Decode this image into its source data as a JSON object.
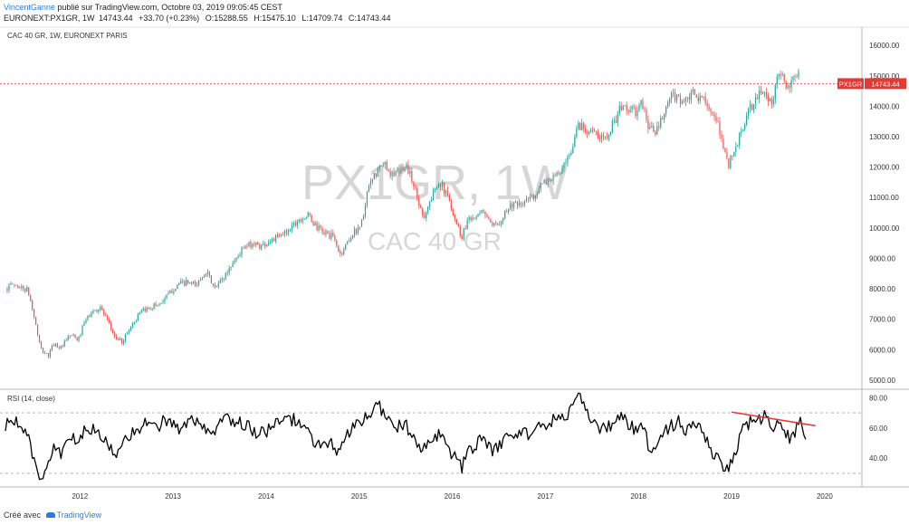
{
  "header": {
    "author": "VincentGanne",
    "published_text": " publié sur TradingView.com, Octobre 03, 2019 09:05:45 CEST",
    "symbol_line": "EURONEXT:PX1GR, 1W",
    "last": "14743.44",
    "change": "+33.70 (+0.23%)",
    "open_label": "O:",
    "open": "15288.55",
    "high_label": "H:",
    "high": "15475.10",
    "low_label": "L:",
    "low": "14709.74",
    "close_label": "C:",
    "close": "14743.44"
  },
  "chart_data": [
    {
      "type": "candlestick",
      "title": "CAC 40 GR, 1W, EURONEXT PARIS",
      "watermark": "PX1GR, 1W",
      "watermark_sub": "CAC 40 GR",
      "ylim": [
        4700,
        16600
      ],
      "yticks": [
        5000,
        6000,
        7000,
        8000,
        9000,
        10000,
        11000,
        12000,
        13000,
        14000,
        15000,
        16000
      ],
      "ytick_labels": [
        "5000.00",
        "6000.00",
        "7000.00",
        "8000.00",
        "9000.00",
        "10000.00",
        "11000.00",
        "12000.00",
        "13000.00",
        "14000.00",
        "15000.00",
        "16000.00"
      ],
      "xlim": [
        2011.2,
        2020.4
      ],
      "xticks": [
        2012,
        2013,
        2014,
        2015,
        2016,
        2017,
        2018,
        2019,
        2020
      ],
      "xtick_labels": [
        "2012",
        "2013",
        "2014",
        "2015",
        "2016",
        "2017",
        "2018",
        "2019",
        "2020"
      ],
      "last_price_label": "PX1GR",
      "last_price_value": "14743.44",
      "last_price": 14743.44,
      "colors": {
        "up": "#26a69a",
        "down": "#ef5350",
        "price_line": "#e53935"
      },
      "path": [
        [
          2011.2,
          8000
        ],
        [
          2011.28,
          8150
        ],
        [
          2011.36,
          8050
        ],
        [
          2011.44,
          7950
        ],
        [
          2011.5,
          7200
        ],
        [
          2011.58,
          6000
        ],
        [
          2011.66,
          5800
        ],
        [
          2011.72,
          6200
        ],
        [
          2011.8,
          6050
        ],
        [
          2011.9,
          6500
        ],
        [
          2011.98,
          6300
        ],
        [
          2012.05,
          6900
        ],
        [
          2012.12,
          7200
        ],
        [
          2012.22,
          7400
        ],
        [
          2012.3,
          6900
        ],
        [
          2012.38,
          6400
        ],
        [
          2012.45,
          6250
        ],
        [
          2012.55,
          6800
        ],
        [
          2012.65,
          7200
        ],
        [
          2012.75,
          7400
        ],
        [
          2012.85,
          7500
        ],
        [
          2012.95,
          7800
        ],
        [
          2013.05,
          8150
        ],
        [
          2013.15,
          8200
        ],
        [
          2013.25,
          8100
        ],
        [
          2013.35,
          8600
        ],
        [
          2013.45,
          8000
        ],
        [
          2013.55,
          8400
        ],
        [
          2013.65,
          8900
        ],
        [
          2013.75,
          9300
        ],
        [
          2013.85,
          9500
        ],
        [
          2013.95,
          9400
        ],
        [
          2014.05,
          9600
        ],
        [
          2014.15,
          9700
        ],
        [
          2014.25,
          10000
        ],
        [
          2014.35,
          10300
        ],
        [
          2014.45,
          10400
        ],
        [
          2014.55,
          10000
        ],
        [
          2014.65,
          9800
        ],
        [
          2014.72,
          9700
        ],
        [
          2014.8,
          9100
        ],
        [
          2014.88,
          9600
        ],
        [
          2014.96,
          9900
        ],
        [
          2015.03,
          10200
        ],
        [
          2015.1,
          11300
        ],
        [
          2015.2,
          11900
        ],
        [
          2015.28,
          12100
        ],
        [
          2015.36,
          11700
        ],
        [
          2015.44,
          11900
        ],
        [
          2015.5,
          12100
        ],
        [
          2015.58,
          11500
        ],
        [
          2015.64,
          10800
        ],
        [
          2015.7,
          10400
        ],
        [
          2015.78,
          11000
        ],
        [
          2015.85,
          11600
        ],
        [
          2015.92,
          11200
        ],
        [
          2015.98,
          10800
        ],
        [
          2016.04,
          10200
        ],
        [
          2016.1,
          9700
        ],
        [
          2016.18,
          10400
        ],
        [
          2016.26,
          10300
        ],
        [
          2016.34,
          10600
        ],
        [
          2016.42,
          10000
        ],
        [
          2016.48,
          10100
        ],
        [
          2016.56,
          10500
        ],
        [
          2016.64,
          10800
        ],
        [
          2016.72,
          10700
        ],
        [
          2016.8,
          10900
        ],
        [
          2016.88,
          11100
        ],
        [
          2016.96,
          11400
        ],
        [
          2017.04,
          11600
        ],
        [
          2017.12,
          11700
        ],
        [
          2017.2,
          12000
        ],
        [
          2017.28,
          12400
        ],
        [
          2017.34,
          13400
        ],
        [
          2017.42,
          13300
        ],
        [
          2017.5,
          13200
        ],
        [
          2017.58,
          12900
        ],
        [
          2017.66,
          13100
        ],
        [
          2017.74,
          13500
        ],
        [
          2017.82,
          14000
        ],
        [
          2017.9,
          13900
        ],
        [
          2017.98,
          13800
        ],
        [
          2018.04,
          14100
        ],
        [
          2018.1,
          13400
        ],
        [
          2018.18,
          13100
        ],
        [
          2018.26,
          13600
        ],
        [
          2018.34,
          14300
        ],
        [
          2018.42,
          14300
        ],
        [
          2018.5,
          14100
        ],
        [
          2018.58,
          14400
        ],
        [
          2018.66,
          14200
        ],
        [
          2018.72,
          14300
        ],
        [
          2018.8,
          13600
        ],
        [
          2018.86,
          13300
        ],
        [
          2018.92,
          12600
        ],
        [
          2018.97,
          12100
        ],
        [
          2019.04,
          12600
        ],
        [
          2019.12,
          13300
        ],
        [
          2019.2,
          13900
        ],
        [
          2019.28,
          14300
        ],
        [
          2019.36,
          14600
        ],
        [
          2019.42,
          14000
        ],
        [
          2019.48,
          14800
        ],
        [
          2019.54,
          15100
        ],
        [
          2019.6,
          14500
        ],
        [
          2019.66,
          14800
        ],
        [
          2019.72,
          15300
        ]
      ]
    },
    {
      "type": "line",
      "title": "RSI (14, close)",
      "ylim": [
        21,
        85
      ],
      "yticks": [
        40,
        60,
        80
      ],
      "ytick_labels": [
        "40.00",
        "60.00",
        "80.00"
      ],
      "bands": [
        30,
        70
      ],
      "line_color": "#000000",
      "trendline": {
        "x": [
          2019.0,
          2019.9
        ],
        "y": [
          70.5,
          61.5
        ],
        "color": "#e53935"
      },
      "path": [
        [
          2011.2,
          62
        ],
        [
          2011.3,
          66
        ],
        [
          2011.4,
          58
        ],
        [
          2011.45,
          52
        ],
        [
          2011.5,
          40
        ],
        [
          2011.55,
          30
        ],
        [
          2011.6,
          27
        ],
        [
          2011.66,
          35
        ],
        [
          2011.72,
          47
        ],
        [
          2011.8,
          44
        ],
        [
          2011.9,
          52
        ],
        [
          2012.0,
          55
        ],
        [
          2012.1,
          60
        ],
        [
          2012.2,
          56
        ],
        [
          2012.3,
          48
        ],
        [
          2012.4,
          44
        ],
        [
          2012.5,
          52
        ],
        [
          2012.6,
          60
        ],
        [
          2012.7,
          62
        ],
        [
          2012.8,
          60
        ],
        [
          2012.9,
          64
        ],
        [
          2013.0,
          62
        ],
        [
          2013.1,
          58
        ],
        [
          2013.2,
          66
        ],
        [
          2013.3,
          60
        ],
        [
          2013.4,
          55
        ],
        [
          2013.5,
          62
        ],
        [
          2013.6,
          66
        ],
        [
          2013.7,
          64
        ],
        [
          2013.8,
          62
        ],
        [
          2013.9,
          56
        ],
        [
          2014.0,
          58
        ],
        [
          2014.1,
          62
        ],
        [
          2014.2,
          64
        ],
        [
          2014.3,
          66
        ],
        [
          2014.4,
          60
        ],
        [
          2014.5,
          52
        ],
        [
          2014.6,
          48
        ],
        [
          2014.7,
          50
        ],
        [
          2014.78,
          42
        ],
        [
          2014.85,
          54
        ],
        [
          2014.95,
          60
        ],
        [
          2015.05,
          66
        ],
        [
          2015.15,
          72
        ],
        [
          2015.22,
          74
        ],
        [
          2015.3,
          68
        ],
        [
          2015.4,
          60
        ],
        [
          2015.5,
          64
        ],
        [
          2015.58,
          52
        ],
        [
          2015.65,
          44
        ],
        [
          2015.72,
          48
        ],
        [
          2015.8,
          56
        ],
        [
          2015.88,
          54
        ],
        [
          2015.96,
          46
        ],
        [
          2016.04,
          40
        ],
        [
          2016.1,
          34
        ],
        [
          2016.18,
          44
        ],
        [
          2016.26,
          50
        ],
        [
          2016.34,
          52
        ],
        [
          2016.42,
          44
        ],
        [
          2016.5,
          48
        ],
        [
          2016.58,
          54
        ],
        [
          2016.66,
          56
        ],
        [
          2016.74,
          58
        ],
        [
          2016.82,
          56
        ],
        [
          2016.9,
          60
        ],
        [
          2016.98,
          62
        ],
        [
          2017.06,
          64
        ],
        [
          2017.14,
          66
        ],
        [
          2017.22,
          68
        ],
        [
          2017.3,
          76
        ],
        [
          2017.36,
          80
        ],
        [
          2017.42,
          72
        ],
        [
          2017.5,
          66
        ],
        [
          2017.58,
          58
        ],
        [
          2017.66,
          60
        ],
        [
          2017.74,
          64
        ],
        [
          2017.82,
          68
        ],
        [
          2017.9,
          62
        ],
        [
          2017.98,
          58
        ],
        [
          2018.06,
          60
        ],
        [
          2018.12,
          44
        ],
        [
          2018.2,
          52
        ],
        [
          2018.28,
          58
        ],
        [
          2018.36,
          62
        ],
        [
          2018.44,
          64
        ],
        [
          2018.52,
          58
        ],
        [
          2018.6,
          62
        ],
        [
          2018.68,
          60
        ],
        [
          2018.76,
          46
        ],
        [
          2018.84,
          40
        ],
        [
          2018.9,
          34
        ],
        [
          2018.96,
          32
        ],
        [
          2019.04,
          44
        ],
        [
          2019.12,
          58
        ],
        [
          2019.2,
          64
        ],
        [
          2019.28,
          66
        ],
        [
          2019.36,
          68
        ],
        [
          2019.42,
          60
        ],
        [
          2019.48,
          64
        ],
        [
          2019.56,
          62
        ],
        [
          2019.62,
          52
        ],
        [
          2019.68,
          58
        ],
        [
          2019.74,
          66
        ],
        [
          2019.8,
          50
        ]
      ]
    }
  ],
  "footer": {
    "prefix": "Créé avec",
    "brand": "TradingView"
  }
}
